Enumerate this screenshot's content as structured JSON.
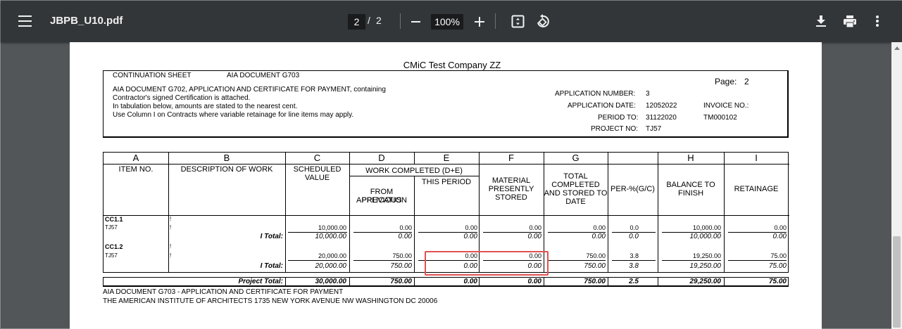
{
  "toolbar": {
    "title": "JBPB_U10.pdf",
    "current_page": "2",
    "page_separator": "/",
    "total_pages": "2",
    "zoom": "100%",
    "icons": [
      "menu-icon",
      "zoom-out-icon",
      "zoom-in-icon",
      "fit-page-icon",
      "rotate-icon",
      "download-icon",
      "print-icon",
      "more-icon"
    ]
  },
  "document": {
    "company": "CMiC Test Company ZZ",
    "header": {
      "continuation_sheet": "CONTINUATION SHEET",
      "aia_doc": "AIA DOCUMENT G703",
      "line1": "AIA DOCUMENT G702, APPLICATION AND CERTIFICATE FOR PAYMENT, containing",
      "line2": "Contractor's signed Certification is attached.",
      "line3": "In tabulation below, amounts are stated to the nearest cent.",
      "line4": "Use Column I on Contracts where variable retainage for line items may apply.",
      "page_label": "Page:",
      "page_value": "2",
      "app_number_label": "APPLICATION NUMBER:",
      "app_number": "3",
      "app_date_label": "APPLICATION DATE:",
      "app_date": "12052022",
      "invoice_label": "INVOICE NO.:",
      "invoice_no": "TM000102",
      "period_label": "PERIOD TO:",
      "period_to": "31122020",
      "project_label": "PROJECT NO:",
      "project_no": "TJ57"
    },
    "columns": {
      "letters": [
        "A",
        "B",
        "C",
        "D",
        "E",
        "F",
        "G",
        "",
        "H",
        "I"
      ],
      "item_no": "ITEM NO.",
      "description": "DESCRIPTION OF WORK",
      "scheduled_1": "SCHEDULED",
      "scheduled_2": "VALUE",
      "work_completed": "WORK COMPLETED (D+E)",
      "from_previous_1": "FROM PREVIOUS",
      "from_previous_2": "APPLICATION",
      "this_period": "THIS PERIOD",
      "material_1": "MATERIAL",
      "material_2": "PRESENTLY",
      "material_3": "STORED",
      "total_1": "TOTAL",
      "total_2": "COMPLETED",
      "total_3": "AND STORED TO",
      "total_4": "DATE",
      "percent": "PER-%(G/C)",
      "balance_1": "BALANCE TO",
      "balance_2": "FINISH",
      "retainage": "RETAINAGE"
    },
    "groups": [
      {
        "code": "CC1.1",
        "sub": "TJ57",
        "mark": "!",
        "line": [
          "10,000.00",
          "0.00",
          "0.00",
          "0.00",
          "0.00",
          "0.0",
          "10,000.00",
          "0.00"
        ],
        "total_label": "I Total:",
        "total": [
          "10,000.00",
          "0.00",
          "0.00",
          "0.00",
          "0.00",
          "0.0",
          "10,000.00",
          "0.00"
        ]
      },
      {
        "code": "CC1.2",
        "sub": "TJ57",
        "mark": "!",
        "line": [
          "20,000.00",
          "750.00",
          "0.00",
          "0.00",
          "750.00",
          "3.8",
          "19,250.00",
          "75.00"
        ],
        "total_label": "I Total:",
        "total": [
          "20,000.00",
          "750.00",
          "0.00",
          "0.00",
          "750.00",
          "3.8",
          "19,250.00",
          "75.00"
        ]
      }
    ],
    "project_total_label": "Project Total:",
    "project_total": [
      "30,000.00",
      "750.00",
      "0.00",
      "0.00",
      "750.00",
      "2.5",
      "29,250.00",
      "75.00"
    ],
    "footer_1": "AIA DOCUMENT G703  -  APPLICATION AND CERTIFICATE FOR PAYMENT",
    "footer_2": "THE AMERICAN INSTITUTE OF ARCHITECTS  1735 NEW YORK AVENUE NW  WASHINGTON DC  20006"
  }
}
